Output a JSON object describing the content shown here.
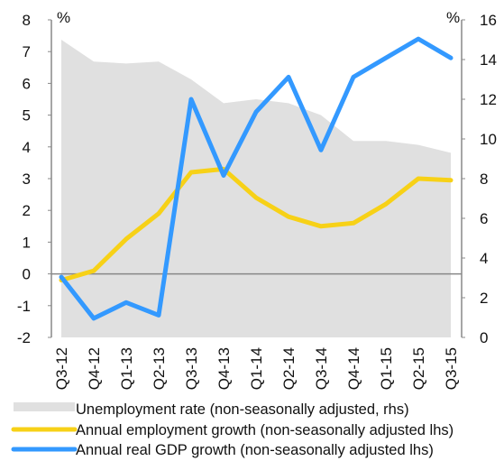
{
  "chart_data": {
    "type": "line",
    "categories": [
      "Q3-12",
      "Q4-12",
      "Q1-13",
      "Q2-13",
      "Q3-13",
      "Q4-13",
      "Q1-14",
      "Q2-14",
      "Q3-14",
      "Q4-14",
      "Q1-15",
      "Q2-15",
      "Q3-15"
    ],
    "left_axis": {
      "unit": "%",
      "ylim": [
        -2,
        8
      ],
      "ticks": [
        "-2",
        "-1",
        "0",
        "1",
        "2",
        "3",
        "4",
        "5",
        "6",
        "7",
        "8"
      ]
    },
    "right_axis": {
      "unit": "%",
      "ylim": [
        0,
        16
      ],
      "ticks": [
        "0",
        "2",
        "4",
        "6",
        "8",
        "10",
        "12",
        "14",
        "16"
      ]
    },
    "series": [
      {
        "name": "Unemployment rate (non-seasonally adjusted, rhs)",
        "kind": "area",
        "axis": "right",
        "color": "#e0e0e0",
        "values": [
          15.0,
          13.9,
          13.8,
          13.9,
          13.0,
          11.8,
          12.0,
          11.8,
          11.2,
          9.9,
          9.9,
          9.7,
          9.3
        ]
      },
      {
        "name": "Annual employment growth (non-seasonally adjusted lhs)",
        "kind": "line",
        "axis": "left",
        "color": "#f7d117",
        "values": [
          -0.2,
          0.1,
          1.1,
          1.9,
          3.2,
          3.3,
          2.4,
          1.8,
          1.5,
          1.6,
          2.2,
          3.0,
          2.95
        ]
      },
      {
        "name": "Annual real GDP growth (non-seasonally adjusted lhs)",
        "kind": "line",
        "axis": "left",
        "color": "#3399ff",
        "values": [
          -0.1,
          -1.4,
          -0.9,
          -1.3,
          5.5,
          3.1,
          5.1,
          6.2,
          3.9,
          6.2,
          6.8,
          7.4,
          6.8
        ]
      }
    ],
    "grid": false,
    "legend_position": "bottom"
  }
}
